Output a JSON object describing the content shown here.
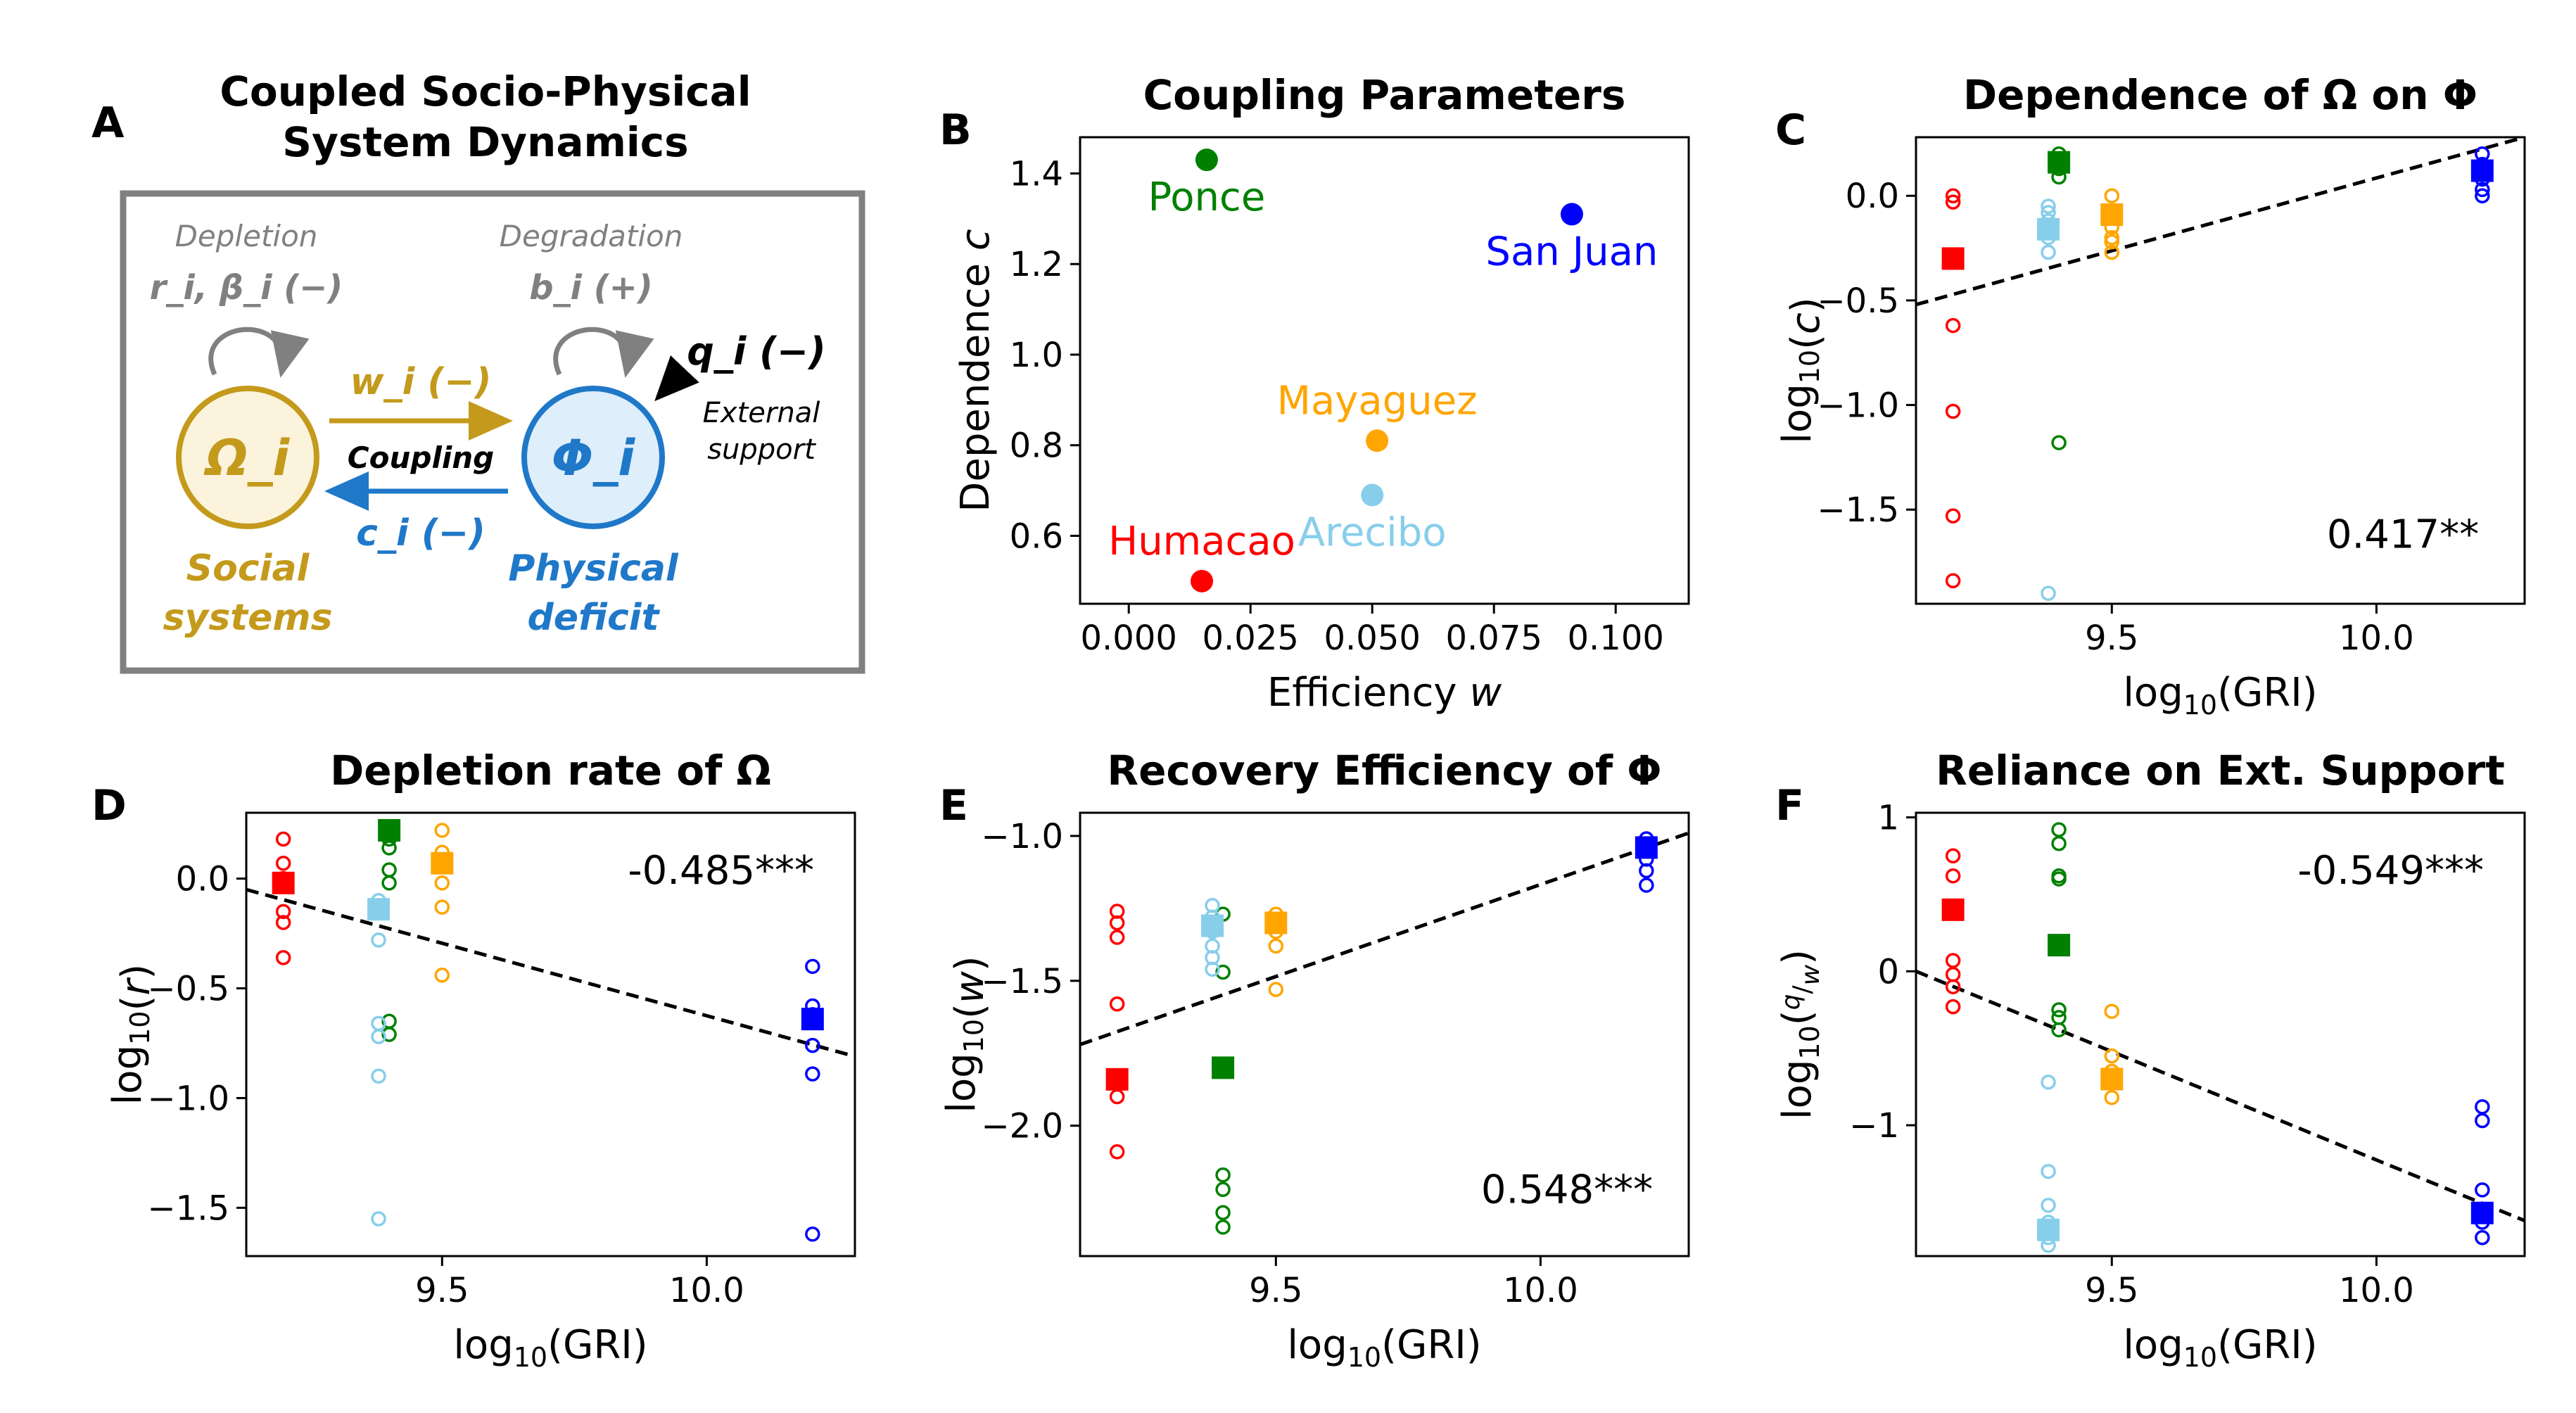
{
  "colors": {
    "Humacao": "#ff0000",
    "Ponce": "#008000",
    "Arecibo": "#87ceeb",
    "Mayaguez": "#ffa500",
    "San Juan": "#0000ff",
    "social": "#c49a1c",
    "physical": "#1f78c8",
    "grey": "#808080"
  },
  "panel_a": {
    "letter": "A",
    "title_line1": "Coupled Socio-Physical",
    "title_line2": "System Dynamics",
    "depletion_label": "Depletion",
    "depletion_params": "r_i, β_i (−)",
    "degradation_label": "Degradation",
    "degradation_params": "b_i (+)",
    "social_node": "Ω_i",
    "physical_node": "Φ_i",
    "coupling_w": "w_i (−)",
    "coupling_label": "Coupling",
    "coupling_c": "c_i (−)",
    "external_q": "q_i (−)",
    "external_label_1": "External",
    "external_label_2": "support",
    "social_caption_1": "Social",
    "social_caption_2": "systems",
    "physical_caption_1": "Physical",
    "physical_caption_2": "deficit"
  },
  "chart_data": [
    {
      "panel": "B",
      "type": "scatter",
      "title": "Coupling Parameters",
      "xlabel": "Efficiency w",
      "ylabel": "Dependence c",
      "xlim": [
        -0.01,
        0.115
      ],
      "ylim": [
        0.45,
        1.48
      ],
      "xticks": [
        0.0,
        0.025,
        0.05,
        0.075,
        0.1
      ],
      "xtick_labels": [
        "0.000",
        "0.025",
        "0.050",
        "0.075",
        "0.100"
      ],
      "yticks": [
        0.6,
        0.8,
        1.0,
        1.2,
        1.4
      ],
      "ytick_labels": [
        "0.6",
        "0.8",
        "1.0",
        "1.2",
        "1.4"
      ],
      "points": [
        {
          "name": "Ponce",
          "x": 0.016,
          "y": 1.43,
          "label_pos": "below"
        },
        {
          "name": "San Juan",
          "x": 0.091,
          "y": 1.31,
          "label_pos": "below"
        },
        {
          "name": "Mayaguez",
          "x": 0.051,
          "y": 0.81,
          "label_pos": "above"
        },
        {
          "name": "Arecibo",
          "x": 0.05,
          "y": 0.69,
          "label_pos": "below"
        },
        {
          "name": "Humacao",
          "x": 0.015,
          "y": 0.5,
          "label_pos": "above"
        }
      ]
    },
    {
      "panel": "C",
      "type": "scatter",
      "title": "Dependence of Ω on Φ",
      "xlabel": "log10(GRI)",
      "ylabel": "log10(c)",
      "xlim": [
        9.13,
        10.28
      ],
      "ylim": [
        -1.95,
        0.28
      ],
      "xticks": [
        9.5,
        10.0
      ],
      "xtick_labels": [
        "9.5",
        "10.0"
      ],
      "yticks": [
        0.0,
        -0.5,
        -1.0,
        -1.5
      ],
      "ytick_labels": [
        "0.0",
        "−0.5",
        "−1.0",
        "−1.5"
      ],
      "fit_line": {
        "x": [
          9.13,
          10.28
        ],
        "y": [
          -0.52,
          0.28
        ]
      },
      "correlation": "0.417**",
      "series": [
        {
          "name": "Humacao",
          "x": 9.2,
          "mean": -0.3,
          "samples": [
            0.0,
            -0.03,
            -0.62,
            -1.03,
            -1.53,
            -1.84
          ]
        },
        {
          "name": "Ponce",
          "x": 9.4,
          "mean": 0.16,
          "samples": [
            0.2,
            0.17,
            0.13,
            0.09,
            -1.18
          ]
        },
        {
          "name": "Arecibo",
          "x": 9.38,
          "mean": -0.16,
          "samples": [
            -0.05,
            -0.08,
            -0.12,
            -0.2,
            -0.27,
            -1.9
          ]
        },
        {
          "name": "Mayaguez",
          "x": 9.5,
          "mean": -0.09,
          "samples": [
            0.0,
            -0.15,
            -0.2,
            -0.22,
            -0.27
          ]
        },
        {
          "name": "San Juan",
          "x": 10.2,
          "mean": 0.12,
          "samples": [
            0.2,
            0.15,
            0.08,
            0.03,
            0.0
          ]
        }
      ]
    },
    {
      "panel": "D",
      "type": "scatter",
      "title": "Depletion rate of Ω",
      "xlabel": "log10(GRI)",
      "ylabel": "log10(r)",
      "xlim": [
        9.13,
        10.28
      ],
      "ylim": [
        -1.72,
        0.3
      ],
      "xticks": [
        9.5,
        10.0
      ],
      "xtick_labels": [
        "9.5",
        "10.0"
      ],
      "yticks": [
        0.0,
        -0.5,
        -1.0,
        -1.5
      ],
      "ytick_labels": [
        "0.0",
        "−0.5",
        "−1.0",
        "−1.5"
      ],
      "fit_line": {
        "x": [
          9.13,
          10.28
        ],
        "y": [
          -0.05,
          -0.81
        ]
      },
      "correlation": "-0.485***",
      "series": [
        {
          "name": "Humacao",
          "x": 9.2,
          "mean": -0.02,
          "samples": [
            0.18,
            0.07,
            0.0,
            -0.15,
            -0.2,
            -0.36
          ]
        },
        {
          "name": "Ponce",
          "x": 9.4,
          "mean": 0.22,
          "samples": [
            0.18,
            0.14,
            0.04,
            -0.02,
            -0.65,
            -0.71
          ]
        },
        {
          "name": "Arecibo",
          "x": 9.38,
          "mean": -0.14,
          "samples": [
            -0.1,
            -0.28,
            -0.66,
            -0.72,
            -0.9,
            -1.55
          ]
        },
        {
          "name": "Mayaguez",
          "x": 9.5,
          "mean": 0.07,
          "samples": [
            0.22,
            0.12,
            -0.02,
            -0.13,
            -0.44
          ]
        },
        {
          "name": "San Juan",
          "x": 10.2,
          "mean": -0.64,
          "samples": [
            -0.4,
            -0.58,
            -0.62,
            -0.76,
            -0.89,
            -1.62
          ]
        }
      ]
    },
    {
      "panel": "E",
      "type": "scatter",
      "title": "Recovery Efficiency of Φ",
      "xlabel": "log10(GRI)",
      "ylabel": "log10(w)",
      "xlim": [
        9.13,
        10.28
      ],
      "ylim": [
        -2.45,
        -0.92
      ],
      "xticks": [
        9.5,
        10.0
      ],
      "xtick_labels": [
        "9.5",
        "10.0"
      ],
      "yticks": [
        -1.0,
        -1.5,
        -2.0
      ],
      "ytick_labels": [
        "−1.0",
        "−1.5",
        "−2.0"
      ],
      "fit_line": {
        "x": [
          9.13,
          10.28
        ],
        "y": [
          -1.72,
          -0.99
        ]
      },
      "correlation": "0.548***",
      "series": [
        {
          "name": "Humacao",
          "x": 9.2,
          "mean": -1.84,
          "samples": [
            -1.26,
            -1.3,
            -1.35,
            -1.58,
            -1.9,
            -2.09
          ]
        },
        {
          "name": "Ponce",
          "x": 9.4,
          "mean": -1.8,
          "samples": [
            -1.27,
            -1.47,
            -2.17,
            -2.22,
            -2.3,
            -2.35
          ]
        },
        {
          "name": "Arecibo",
          "x": 9.38,
          "mean": -1.31,
          "samples": [
            -1.24,
            -1.28,
            -1.33,
            -1.38,
            -1.42,
            -1.46
          ]
        },
        {
          "name": "Mayaguez",
          "x": 9.5,
          "mean": -1.3,
          "samples": [
            -1.27,
            -1.33,
            -1.38,
            -1.53
          ]
        },
        {
          "name": "San Juan",
          "x": 10.2,
          "mean": -1.04,
          "samples": [
            -1.01,
            -1.03,
            -1.08,
            -1.12,
            -1.17
          ]
        }
      ]
    },
    {
      "panel": "F",
      "type": "scatter",
      "title": "Reliance on Ext. Support",
      "xlabel": "log10(GRI)",
      "ylabel": "log10(q/w)",
      "xlim": [
        9.13,
        10.28
      ],
      "ylim": [
        -1.85,
        1.03
      ],
      "xticks": [
        9.5,
        10.0
      ],
      "xtick_labels": [
        "9.5",
        "10.0"
      ],
      "yticks": [
        1,
        0,
        -1
      ],
      "ytick_labels": [
        "1",
        "0",
        "−1"
      ],
      "fit_line": {
        "x": [
          9.13,
          10.28
        ],
        "y": [
          0.0,
          -1.62
        ]
      },
      "correlation": "-0.549***",
      "series": [
        {
          "name": "Humacao",
          "x": 9.2,
          "mean": 0.4,
          "samples": [
            0.75,
            0.62,
            0.07,
            -0.02,
            -0.1,
            -0.23
          ]
        },
        {
          "name": "Ponce",
          "x": 9.4,
          "mean": 0.17,
          "samples": [
            0.92,
            0.83,
            0.62,
            0.6,
            -0.25,
            -0.3,
            -0.38
          ]
        },
        {
          "name": "Arecibo",
          "x": 9.38,
          "mean": -1.68,
          "samples": [
            -0.72,
            -1.3,
            -1.52,
            -1.63,
            -1.73,
            -1.78
          ]
        },
        {
          "name": "Mayaguez",
          "x": 9.5,
          "mean": -0.7,
          "samples": [
            -0.26,
            -0.55,
            -0.65,
            -0.72,
            -0.82
          ]
        },
        {
          "name": "San Juan",
          "x": 10.2,
          "mean": -1.57,
          "samples": [
            -0.88,
            -0.97,
            -1.42,
            -1.55,
            -1.63,
            -1.73
          ]
        }
      ]
    }
  ]
}
